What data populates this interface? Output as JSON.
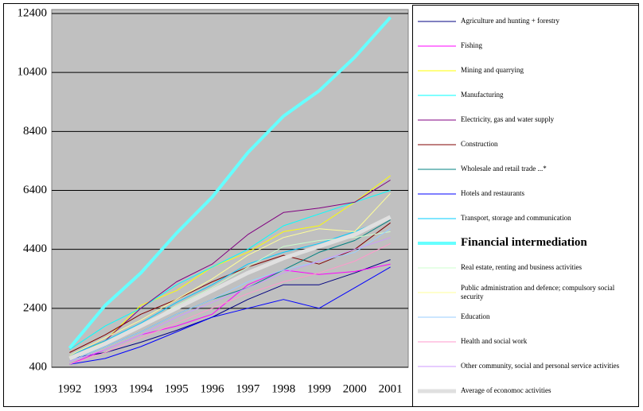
{
  "chart_data": {
    "type": "line",
    "categories": [
      "1992",
      "1993",
      "1994",
      "1995",
      "1996",
      "1997",
      "1998",
      "1999",
      "2000",
      "2001"
    ],
    "ylim": [
      400,
      12400
    ],
    "yticks": [
      400,
      2400,
      4400,
      6400,
      8400,
      10400,
      12400
    ],
    "grid": true,
    "series": [
      {
        "name": "Agriculture and hunting + forestry",
        "color": "#000080",
        "width": 1,
        "values": [
          700,
          900,
          1250,
          1650,
          2100,
          2700,
          3200,
          3200,
          3600,
          4050
        ]
      },
      {
        "name": "Fishing",
        "color": "#ff00ff",
        "width": 1,
        "values": [
          500,
          1000,
          1500,
          1800,
          2200,
          3200,
          3700,
          3550,
          3650,
          3900
        ]
      },
      {
        "name": "Mining and quarrying",
        "color": "#ffff00",
        "width": 1,
        "values": [
          700,
          1300,
          2500,
          3000,
          3800,
          4300,
          5000,
          5200,
          6000,
          6900
        ]
      },
      {
        "name": "Manufacturing",
        "color": "#00ffff",
        "width": 1,
        "values": [
          1000,
          1800,
          2400,
          3200,
          3800,
          4400,
          5200,
          5600,
          6000,
          6400
        ]
      },
      {
        "name": "Electricity, gas and water supply",
        "color": "#800080",
        "width": 1,
        "values": [
          800,
          1300,
          2400,
          3300,
          3900,
          4900,
          5650,
          5800,
          6000,
          6750
        ]
      },
      {
        "name": "Construction",
        "color": "#800000",
        "width": 1,
        "values": [
          900,
          1500,
          2200,
          2700,
          3300,
          3800,
          4200,
          3900,
          4400,
          5300
        ]
      },
      {
        "name": "Wholesale and retail trade ...*",
        "color": "#008080",
        "width": 1,
        "values": [
          600,
          1100,
          1600,
          2200,
          2700,
          3100,
          3700,
          4300,
          4700,
          5400
        ]
      },
      {
        "name": "Hotels and restaurants",
        "color": "#0000ff",
        "width": 1,
        "values": [
          500,
          700,
          1100,
          1600,
          2100,
          2400,
          2700,
          2400,
          3100,
          3800
        ]
      },
      {
        "name": "Transport, storage and communication",
        "color": "#00ccff",
        "width": 1,
        "values": [
          800,
          1300,
          1900,
          2600,
          3200,
          3900,
          4300,
          4600,
          5000,
          5500
        ]
      },
      {
        "name": "Financial intermediation",
        "color": "#66ffff",
        "width": 4,
        "values": [
          1050,
          2500,
          3600,
          4950,
          6170,
          7680,
          8920,
          9780,
          10920,
          12270
        ]
      },
      {
        "name": "Real estate, renting and business activities",
        "color": "#ccffcc",
        "width": 1,
        "values": [
          700,
          1200,
          1800,
          2500,
          3100,
          3800,
          4500,
          4700,
          4800,
          5000
        ]
      },
      {
        "name": "Public administration and defence; compulsory social security",
        "color": "#ffff99",
        "width": 1,
        "values": [
          800,
          1400,
          2000,
          2700,
          3400,
          4200,
          4800,
          5100,
          5000,
          6300
        ]
      },
      {
        "name": "Education",
        "color": "#99ccff",
        "width": 1,
        "values": [
          600,
          1100,
          1600,
          2200,
          2700,
          3300,
          3700,
          4000,
          4300,
          5100
        ]
      },
      {
        "name": "Health and social work",
        "color": "#ff99cc",
        "width": 1,
        "values": [
          500,
          900,
          1400,
          1900,
          2400,
          2900,
          3300,
          3600,
          4000,
          4600
        ]
      },
      {
        "name": "Other community, social and personal service activities",
        "color": "#cc99ff",
        "width": 1,
        "values": [
          600,
          1000,
          1500,
          2100,
          2600,
          3100,
          3600,
          4000,
          4400,
          4800
        ]
      },
      {
        "name": "Average of economoc activities",
        "color": "#e0e0e0",
        "width": 5,
        "values": [
          700,
          1200,
          1800,
          2400,
          3000,
          3600,
          4100,
          4500,
          4900,
          5500
        ]
      }
    ]
  }
}
